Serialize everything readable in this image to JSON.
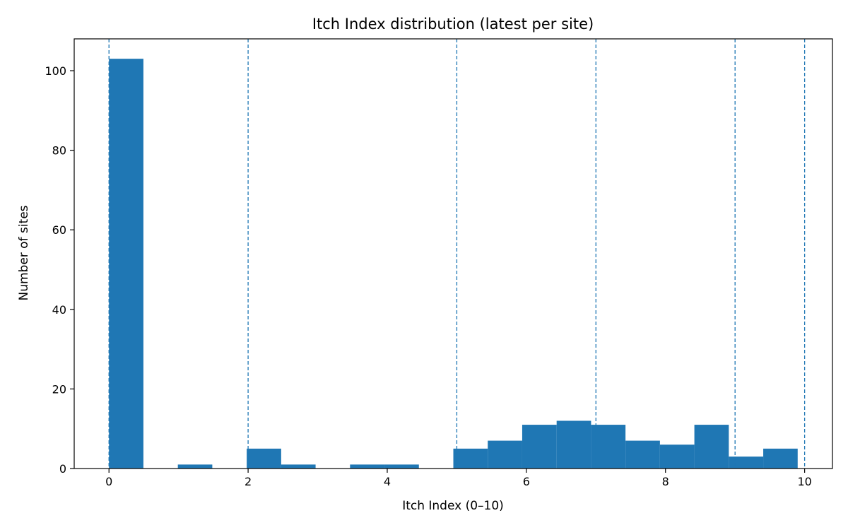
{
  "chart_data": {
    "type": "bar",
    "title": "Itch Index distribution (latest per site)",
    "xlabel": "Itch Index (0–10)",
    "ylabel": "Number of sites",
    "xlim": [
      -0.5,
      10.4
    ],
    "ylim": [
      0,
      108
    ],
    "x_ticks": [
      0,
      2,
      4,
      6,
      8,
      10
    ],
    "y_ticks": [
      0,
      20,
      40,
      60,
      80,
      100
    ],
    "bin_width": 0.495,
    "bins": [
      {
        "start": 0.0,
        "value": 103
      },
      {
        "start": 0.495,
        "value": 0
      },
      {
        "start": 0.99,
        "value": 1
      },
      {
        "start": 1.485,
        "value": 0
      },
      {
        "start": 1.98,
        "value": 5
      },
      {
        "start": 2.475,
        "value": 1
      },
      {
        "start": 2.97,
        "value": 0
      },
      {
        "start": 3.465,
        "value": 1
      },
      {
        "start": 3.96,
        "value": 1
      },
      {
        "start": 4.455,
        "value": 0
      },
      {
        "start": 4.95,
        "value": 5
      },
      {
        "start": 5.445,
        "value": 7
      },
      {
        "start": 5.94,
        "value": 11
      },
      {
        "start": 6.435,
        "value": 12
      },
      {
        "start": 6.93,
        "value": 11
      },
      {
        "start": 7.425,
        "value": 7
      },
      {
        "start": 7.92,
        "value": 6
      },
      {
        "start": 8.415,
        "value": 11
      },
      {
        "start": 8.91,
        "value": 3
      },
      {
        "start": 9.405,
        "value": 5
      }
    ],
    "reference_lines": [
      0,
      2,
      5,
      7,
      9,
      10
    ],
    "grid": false,
    "colors": {
      "bar": "#1f77b4",
      "reference_line": "#1f77b4",
      "axis": "#000000"
    }
  }
}
